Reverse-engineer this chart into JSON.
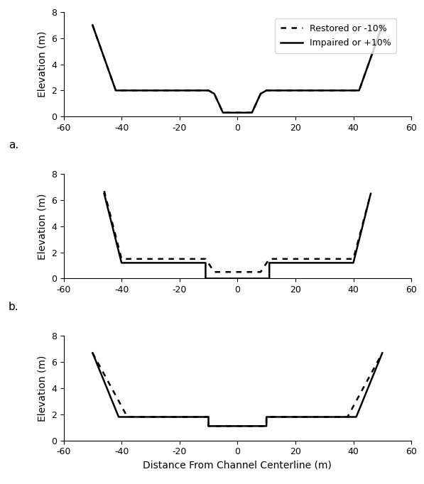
{
  "xlim": [
    -60,
    60
  ],
  "ylim": [
    0,
    8
  ],
  "yticks": [
    0,
    2,
    4,
    6,
    8
  ],
  "xticks": [
    -60,
    -40,
    -20,
    0,
    20,
    40,
    60
  ],
  "ylabel": "Elevation (m)",
  "xlabel": "Distance From Channel Centerline (m)",
  "legend_labels": [
    "Restored or -10%",
    "Impaired or +10%"
  ],
  "p0_solid_x": [
    -50,
    -42,
    -10,
    -8,
    -5,
    5,
    8,
    10,
    42,
    50
  ],
  "p0_solid_y": [
    7.0,
    2.0,
    2.0,
    1.75,
    0.3,
    0.3,
    1.75,
    2.0,
    2.0,
    7.0
  ],
  "p0_dotted_x": [
    -50,
    -42,
    -10,
    -8,
    -5,
    5,
    8,
    10,
    42,
    50
  ],
  "p0_dotted_y": [
    7.0,
    2.0,
    2.0,
    1.75,
    0.3,
    0.3,
    1.75,
    2.0,
    2.0,
    7.0
  ],
  "p1_solid_x": [
    -46,
    -40,
    -11,
    -11,
    11,
    11,
    40,
    46
  ],
  "p1_solid_y": [
    6.5,
    1.2,
    1.2,
    0.0,
    0.0,
    1.2,
    1.2,
    6.5
  ],
  "p1_dotted_x": [
    -46,
    -40,
    -11,
    -8,
    -8,
    8,
    8,
    11,
    40,
    46
  ],
  "p1_dotted_y": [
    6.7,
    1.5,
    1.5,
    0.5,
    0.5,
    0.5,
    0.5,
    1.5,
    1.5,
    6.5
  ],
  "p2_solid_x": [
    -50,
    -41,
    -10,
    -10,
    10,
    10,
    41,
    50
  ],
  "p2_solid_y": [
    6.7,
    1.8,
    1.8,
    1.1,
    1.1,
    1.8,
    1.8,
    6.7
  ],
  "p2_dotted_x": [
    -50,
    -38,
    -10,
    -10,
    10,
    10,
    38,
    50
  ],
  "p2_dotted_y": [
    6.7,
    1.8,
    1.8,
    1.1,
    1.1,
    1.8,
    1.8,
    6.7
  ]
}
